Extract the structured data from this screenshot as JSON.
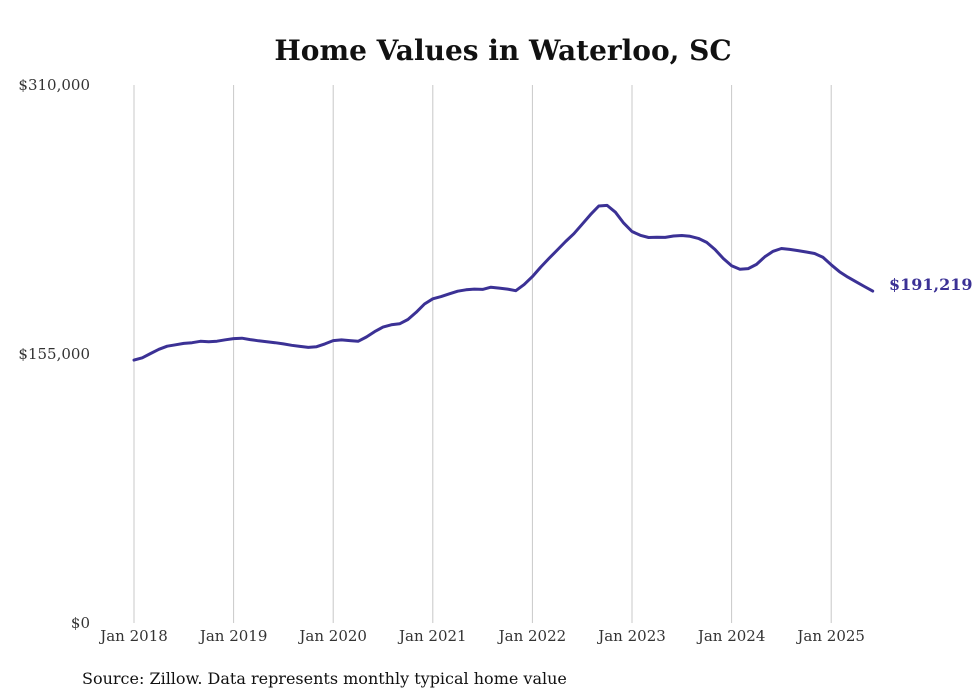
{
  "chart_data": {
    "type": "line",
    "title": "Home Values in Waterloo, SC",
    "source": "Source: Zillow. Data represents monthly typical home value",
    "xlabel": "",
    "ylabel": "",
    "ylim": [
      0,
      310000
    ],
    "yticks": [
      {
        "value": 0,
        "label": "$0"
      },
      {
        "value": 155000,
        "label": "$155,000"
      },
      {
        "value": 310000,
        "label": "$310,000"
      }
    ],
    "xticks": [
      "Jan 2018",
      "Jan 2019",
      "Jan 2020",
      "Jan 2021",
      "Jan 2022",
      "Jan 2023",
      "Jan 2024",
      "Jan 2025"
    ],
    "grid": "vertical",
    "line_color": "#3b3195",
    "end_label": "$191,219",
    "series": [
      {
        "x": [
          "2018-01",
          "2018-02",
          "2018-03",
          "2018-04",
          "2018-05",
          "2018-06",
          "2018-07",
          "2018-08",
          "2018-09",
          "2018-10",
          "2018-11",
          "2018-12",
          "2019-01",
          "2019-02",
          "2019-03",
          "2019-04",
          "2019-05",
          "2019-06",
          "2019-07",
          "2019-08",
          "2019-09",
          "2019-10",
          "2019-11",
          "2019-12",
          "2020-01",
          "2020-02",
          "2020-03",
          "2020-04",
          "2020-05",
          "2020-06",
          "2020-07",
          "2020-08",
          "2020-09",
          "2020-10",
          "2020-11",
          "2020-12",
          "2021-01",
          "2021-02",
          "2021-03",
          "2021-04",
          "2021-05",
          "2021-06",
          "2021-07",
          "2021-08",
          "2021-09",
          "2021-10",
          "2021-11",
          "2021-12",
          "2022-01",
          "2022-02",
          "2022-03",
          "2022-04",
          "2022-05",
          "2022-06",
          "2022-07",
          "2022-08",
          "2022-09",
          "2022-10",
          "2022-11",
          "2022-12",
          "2023-01",
          "2023-02",
          "2023-03",
          "2023-04",
          "2023-05",
          "2023-06",
          "2023-07",
          "2023-08",
          "2023-09",
          "2023-10",
          "2023-11",
          "2023-12",
          "2024-01",
          "2024-02",
          "2024-03",
          "2024-04",
          "2024-05",
          "2024-06",
          "2024-07",
          "2024-08",
          "2024-09",
          "2024-10",
          "2024-11",
          "2024-12",
          "2025-01",
          "2025-02",
          "2025-03",
          "2025-04",
          "2025-05",
          "2025-06"
        ],
        "values": [
          151500,
          152800,
          155300,
          157700,
          159500,
          160300,
          161100,
          161500,
          162300,
          162100,
          162400,
          163200,
          163900,
          164100,
          163300,
          162600,
          162100,
          161500,
          160800,
          160000,
          159400,
          158800,
          159200,
          160800,
          162700,
          163100,
          162700,
          162300,
          164800,
          167900,
          170500,
          171800,
          172400,
          174900,
          179000,
          183800,
          186800,
          188100,
          189700,
          191200,
          192000,
          192400,
          192200,
          193500,
          193000,
          192400,
          191500,
          195000,
          199600,
          205100,
          210100,
          214900,
          219800,
          224300,
          229800,
          235300,
          240300,
          240600,
          236700,
          230400,
          225600,
          223400,
          222100,
          222300,
          222200,
          223000,
          223300,
          222800,
          221600,
          219300,
          215200,
          210000,
          205900,
          203800,
          204200,
          206600,
          211000,
          214200,
          215800,
          215300,
          214600,
          213800,
          212900,
          210700,
          206400,
          202400,
          199300,
          196600,
          193900,
          191219
        ]
      }
    ]
  }
}
